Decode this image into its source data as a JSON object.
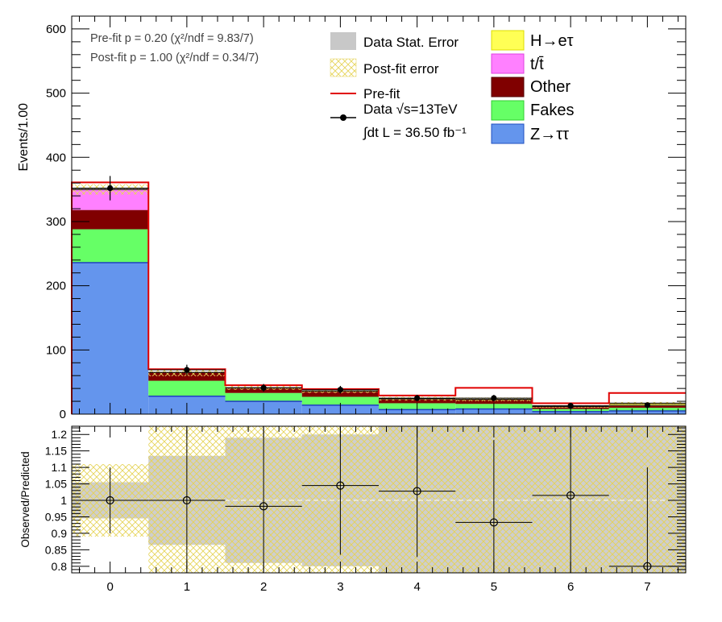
{
  "chart_data": [
    {
      "type": "bar",
      "ylabel": "Events/1.00",
      "ylim": [
        0,
        620
      ],
      "y_ticks": [
        "0",
        "100",
        "200",
        "300",
        "400",
        "500",
        "600"
      ],
      "x_ticks": [
        "0",
        "1",
        "2",
        "3",
        "4",
        "5",
        "6",
        "7"
      ],
      "xlim": [
        -0.5,
        7.5
      ],
      "stacked": true,
      "categories": [
        "0",
        "1",
        "2",
        "3",
        "4",
        "5",
        "6",
        "7"
      ],
      "series": [
        {
          "name": "Z→ττ",
          "color": "#6495ed",
          "values": [
            236,
            28,
            20,
            14,
            7,
            8,
            4,
            5
          ]
        },
        {
          "name": "Fakes",
          "color": "#66ff66",
          "values": [
            52,
            24,
            13,
            13,
            10,
            8,
            4,
            5
          ]
        },
        {
          "name": "Other",
          "color": "#800000",
          "values": [
            30,
            13,
            7,
            8,
            6,
            6,
            3,
            3
          ]
        },
        {
          "name": "t/t̄",
          "color": "#ff80ff",
          "values": [
            32,
            0,
            0,
            0,
            0,
            0,
            0,
            0
          ]
        },
        {
          "name": "H→eτ",
          "color": "#ffff55",
          "values": [
            0,
            0,
            1,
            1,
            1,
            1,
            1,
            4
          ]
        }
      ],
      "prefit": [
        361,
        70,
        45,
        39,
        29,
        41,
        17,
        33
      ],
      "postfit_error": [
        8,
        6,
        3,
        3,
        3,
        3,
        2,
        2
      ],
      "data": {
        "x": [
          0,
          1,
          2,
          3,
          4,
          5,
          6,
          7
        ],
        "y": [
          352,
          69,
          41,
          38,
          25,
          25,
          13,
          14
        ],
        "err": [
          19,
          8,
          6,
          6,
          5,
          5,
          3.6,
          3.7
        ]
      },
      "annotations": {
        "prefit_line": "Pre-fit   p = 0.20 (χ²/ndf = 9.83/7)",
        "postfit_line": "Post-fit p = 1.00 (χ²/ndf = 0.34/7)",
        "lumi": "∫dt L = 36.50 fb⁻¹"
      },
      "legend": {
        "placement": "top",
        "left_col": [
          "Data Stat. Error",
          "Post-fit error",
          "Pre-fit",
          "Data  √s=13TeV"
        ],
        "right_col": [
          "H→eτ",
          "t/t̄",
          "Other",
          "Fakes",
          "Z→ττ"
        ]
      }
    },
    {
      "type": "scatter",
      "ylabel": "Observed/Predicted",
      "ylim": [
        0.78,
        1.225
      ],
      "y_ticks": [
        "0.8",
        "0.85",
        "0.9",
        "0.95",
        "1",
        "1.05",
        "1.1",
        "1.15",
        "1.2"
      ],
      "x_ticks": [
        "0",
        "1",
        "2",
        "3",
        "4",
        "5",
        "6",
        "7"
      ],
      "xlim": [
        -0.5,
        7.5
      ],
      "ratio": {
        "x": [
          0,
          1,
          2,
          3,
          4,
          5,
          6,
          7
        ],
        "y": [
          1.0,
          1.0,
          0.982,
          1.045,
          1.028,
          0.933,
          1.015,
          0.8
        ],
        "err_lo": [
          0.1,
          0.3,
          0.3,
          0.21,
          0.2,
          0.25,
          0.3,
          0.3
        ],
        "err_hi": [
          0.1,
          0.3,
          0.3,
          0.21,
          0.2,
          0.25,
          0.3,
          0.3
        ]
      },
      "stat_band": [
        0.055,
        0.135,
        0.19,
        0.2,
        0.25,
        0.25,
        0.3,
        0.3
      ],
      "postfit_band": [
        0.11,
        0.3,
        0.3,
        0.3,
        0.3,
        0.3,
        0.3,
        0.3
      ]
    }
  ]
}
